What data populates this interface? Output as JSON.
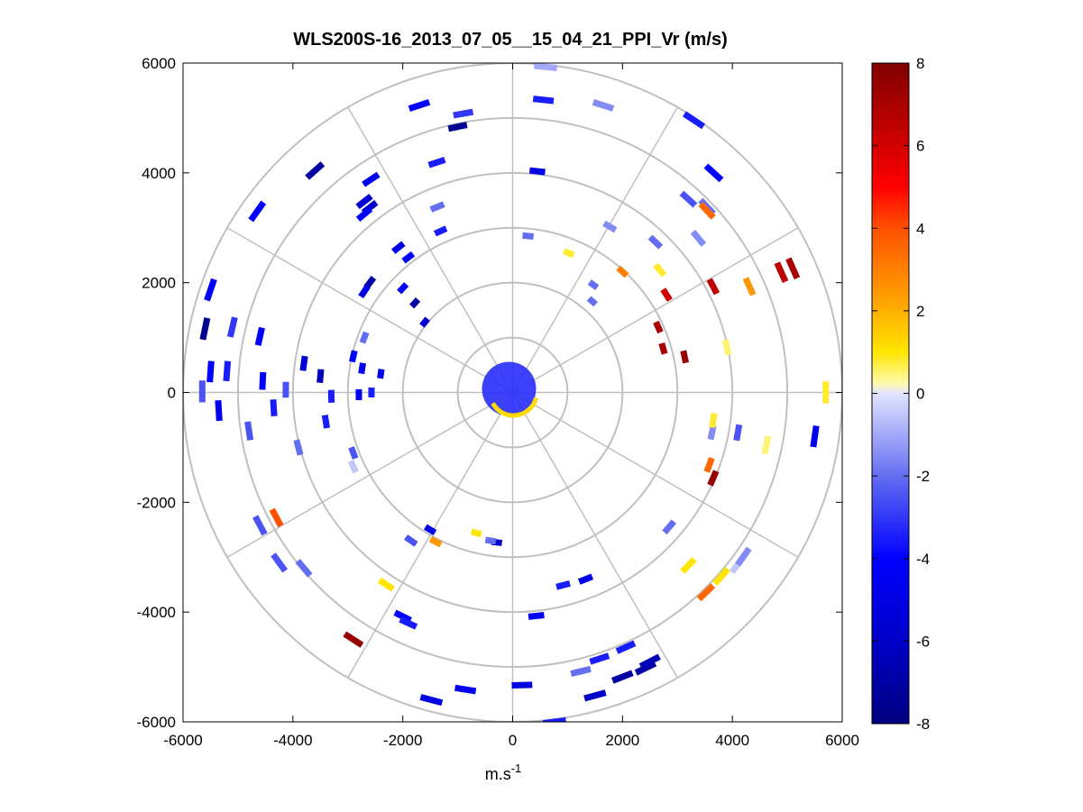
{
  "chart_data": {
    "type": "scatter",
    "subtype": "polar-ppi",
    "title": "WLS200S-16_2013_07_05__15_04_21_PPI_Vr (m/s)",
    "xlabel": "m.s",
    "xlabel_superscript": "-1",
    "ylabel": "",
    "xlim": [
      -6000,
      6000
    ],
    "ylim": [
      -6000,
      6000
    ],
    "x_ticks": [
      -6000,
      -4000,
      -2000,
      0,
      2000,
      4000,
      6000
    ],
    "y_ticks": [
      -6000,
      -4000,
      -2000,
      0,
      2000,
      4000,
      6000
    ],
    "x_tick_labels": [
      "-6000",
      "-4000",
      "-2000",
      "0",
      "2000",
      "4000",
      "6000"
    ],
    "y_tick_labels": [
      "-6000",
      "-4000",
      "-2000",
      "0",
      "2000",
      "4000",
      "6000"
    ],
    "range_rings": [
      1000,
      2000,
      3000,
      4000,
      5000,
      6000
    ],
    "radial_lines_deg": [
      0,
      30,
      60,
      90,
      120,
      150,
      180,
      210,
      240,
      270,
      300,
      330
    ],
    "colorbar": {
      "min": -8,
      "max": 8,
      "ticks": [
        8,
        6,
        4,
        2,
        0,
        -2,
        -4,
        -6,
        -8
      ],
      "tick_labels": [
        "8",
        "6",
        "4",
        "2",
        "0",
        "-2",
        "-4",
        "-6",
        "-8"
      ]
    },
    "points": [
      {
        "x": 600,
        "y": 5930,
        "v": -1.0
      },
      {
        "x": 560,
        "y": 5330,
        "v": -3.5
      },
      {
        "x": -1700,
        "y": 5230,
        "v": -4.0
      },
      {
        "x": -900,
        "y": 5080,
        "v": -3.0
      },
      {
        "x": -1000,
        "y": 4840,
        "v": -7.5
      },
      {
        "x": 1650,
        "y": 5230,
        "v": -1.5
      },
      {
        "x": 3300,
        "y": 4960,
        "v": -3.5
      },
      {
        "x": -1380,
        "y": 4190,
        "v": -3.5
      },
      {
        "x": -3600,
        "y": 4040,
        "v": -7.0
      },
      {
        "x": -4650,
        "y": 3300,
        "v": -4.0
      },
      {
        "x": -2700,
        "y": 3480,
        "v": -5.5
      },
      {
        "x": -2600,
        "y": 3370,
        "v": -6.0
      },
      {
        "x": -2700,
        "y": 3250,
        "v": -4.0
      },
      {
        "x": -2580,
        "y": 3880,
        "v": -4.5
      },
      {
        "x": 450,
        "y": 4030,
        "v": -5.0
      },
      {
        "x": 3660,
        "y": 4000,
        "v": -4.0
      },
      {
        "x": 3200,
        "y": 3520,
        "v": -2.5
      },
      {
        "x": 3540,
        "y": 3380,
        "v": -2.0
      },
      {
        "x": 3540,
        "y": 3310,
        "v": 3.5
      },
      {
        "x": 3380,
        "y": 2810,
        "v": -1.5
      },
      {
        "x": -1370,
        "y": 3380,
        "v": -2.0
      },
      {
        "x": -1310,
        "y": 2940,
        "v": -3.5
      },
      {
        "x": 1770,
        "y": 3020,
        "v": -1.5
      },
      {
        "x": 2600,
        "y": 2740,
        "v": -2.0
      },
      {
        "x": 280,
        "y": 2850,
        "v": -2.0
      },
      {
        "x": 1020,
        "y": 2540,
        "v": 0.8
      },
      {
        "x": -2080,
        "y": 2640,
        "v": -5.0
      },
      {
        "x": -1900,
        "y": 2460,
        "v": -4.0
      },
      {
        "x": 2000,
        "y": 2200,
        "v": 3.0
      },
      {
        "x": 2680,
        "y": 2230,
        "v": 0.8
      },
      {
        "x": -2600,
        "y": 2000,
        "v": -7.0
      },
      {
        "x": -2700,
        "y": 1840,
        "v": -5.0
      },
      {
        "x": -2000,
        "y": 1900,
        "v": -4.0
      },
      {
        "x": 1470,
        "y": 1960,
        "v": -2.0
      },
      {
        "x": 2800,
        "y": 1780,
        "v": 6.0
      },
      {
        "x": 3650,
        "y": 1930,
        "v": 6.5
      },
      {
        "x": 4310,
        "y": 1930,
        "v": 2.5
      },
      {
        "x": 4890,
        "y": 2190,
        "v": 6.5
      },
      {
        "x": 5100,
        "y": 2260,
        "v": 7.0
      },
      {
        "x": 1450,
        "y": 1660,
        "v": -2.0
      },
      {
        "x": -5500,
        "y": 1870,
        "v": -4.0
      },
      {
        "x": -5600,
        "y": 1160,
        "v": -7.5
      },
      {
        "x": -5100,
        "y": 1190,
        "v": -3.0
      },
      {
        "x": -4600,
        "y": 1020,
        "v": -4.0
      },
      {
        "x": -1780,
        "y": 1630,
        "v": -7.0
      },
      {
        "x": -1600,
        "y": 1280,
        "v": -6.0
      },
      {
        "x": 2650,
        "y": 1190,
        "v": 7.0
      },
      {
        "x": 2740,
        "y": 800,
        "v": 7.0
      },
      {
        "x": 3130,
        "y": 650,
        "v": 7.5
      },
      {
        "x": 3900,
        "y": 820,
        "v": 0.5
      },
      {
        "x": -3800,
        "y": 530,
        "v": -5.5
      },
      {
        "x": -3500,
        "y": 300,
        "v": -6.5
      },
      {
        "x": -2900,
        "y": 660,
        "v": -4.0
      },
      {
        "x": -2740,
        "y": 440,
        "v": -4.5
      },
      {
        "x": -2400,
        "y": 340,
        "v": -4.5
      },
      {
        "x": -5500,
        "y": 380,
        "v": -4.0
      },
      {
        "x": -5200,
        "y": 390,
        "v": -3.5
      },
      {
        "x": -5650,
        "y": 20,
        "v": -2.5
      },
      {
        "x": -4550,
        "y": 210,
        "v": -4.0
      },
      {
        "x": -4130,
        "y": 50,
        "v": -2.5
      },
      {
        "x": -4350,
        "y": -280,
        "v": -3.5
      },
      {
        "x": -3300,
        "y": -70,
        "v": -3.5
      },
      {
        "x": -2800,
        "y": -40,
        "v": -4.5
      },
      {
        "x": -2570,
        "y": 0,
        "v": -3.5
      },
      {
        "x": -5350,
        "y": -330,
        "v": -4.5
      },
      {
        "x": -4800,
        "y": -700,
        "v": -2.5
      },
      {
        "x": -3400,
        "y": -530,
        "v": -3.5
      },
      {
        "x": -3900,
        "y": -1000,
        "v": -2.0
      },
      {
        "x": -2900,
        "y": -1100,
        "v": -2.5
      },
      {
        "x": -2900,
        "y": -1350,
        "v": -0.5
      },
      {
        "x": -4300,
        "y": -2280,
        "v": 4.0
      },
      {
        "x": -4600,
        "y": -2420,
        "v": -2.5
      },
      {
        "x": -4250,
        "y": -3100,
        "v": -2.5
      },
      {
        "x": -3800,
        "y": -3200,
        "v": -2.0
      },
      {
        "x": -2900,
        "y": -4500,
        "v": 7.5
      },
      {
        "x": -2300,
        "y": -3500,
        "v": 1.0
      },
      {
        "x": -2000,
        "y": -4080,
        "v": -4.0
      },
      {
        "x": -1900,
        "y": -4200,
        "v": -3.5
      },
      {
        "x": -1850,
        "y": -2700,
        "v": -2.5
      },
      {
        "x": -1400,
        "y": -2720,
        "v": 2.5
      },
      {
        "x": -1500,
        "y": -2500,
        "v": -4.5
      },
      {
        "x": -660,
        "y": -2560,
        "v": 1.0
      },
      {
        "x": -290,
        "y": -2730,
        "v": -6.0
      },
      {
        "x": -400,
        "y": -2700,
        "v": -2.0
      },
      {
        "x": 920,
        "y": -3510,
        "v": -3.5
      },
      {
        "x": 1330,
        "y": -3400,
        "v": -4.5
      },
      {
        "x": 430,
        "y": -4070,
        "v": -4.0
      },
      {
        "x": 1580,
        "y": -4850,
        "v": -3.5
      },
      {
        "x": 1240,
        "y": -5080,
        "v": -2.0
      },
      {
        "x": 2000,
        "y": -5180,
        "v": -7.0
      },
      {
        "x": 2420,
        "y": -5020,
        "v": -7.0
      },
      {
        "x": 2500,
        "y": -4900,
        "v": -6.5
      },
      {
        "x": 3520,
        "y": -3640,
        "v": 3.5
      },
      {
        "x": 3800,
        "y": -3350,
        "v": 1.0
      },
      {
        "x": 4100,
        "y": -3130,
        "v": -0.5
      },
      {
        "x": 4200,
        "y": -2990,
        "v": -1.5
      },
      {
        "x": 3200,
        "y": -3150,
        "v": 1.0
      },
      {
        "x": 2850,
        "y": -2450,
        "v": -2.0
      },
      {
        "x": 3650,
        "y": -1560,
        "v": 7.5
      },
      {
        "x": 3580,
        "y": -1320,
        "v": 3.5
      },
      {
        "x": 3630,
        "y": -730,
        "v": -1.5
      },
      {
        "x": 3650,
        "y": -510,
        "v": 0.8
      },
      {
        "x": 4100,
        "y": -730,
        "v": -2.5
      },
      {
        "x": 4620,
        "y": -960,
        "v": 0.5
      },
      {
        "x": 5500,
        "y": -800,
        "v": -4.5
      },
      {
        "x": 5700,
        "y": 2,
        "v": 0.8
      },
      {
        "x": -860,
        "y": -5410,
        "v": -4.5
      },
      {
        "x": -1480,
        "y": -5600,
        "v": -5.0
      },
      {
        "x": 170,
        "y": -5330,
        "v": -5.0
      },
      {
        "x": -2700,
        "y": 1000,
        "v": -2.0
      },
      {
        "x": 760,
        "y": -6000,
        "v": -3.5
      },
      {
        "x": 1500,
        "y": -5520,
        "v": -6.0
      },
      {
        "x": 2060,
        "y": -4640,
        "v": -3.5
      }
    ]
  }
}
